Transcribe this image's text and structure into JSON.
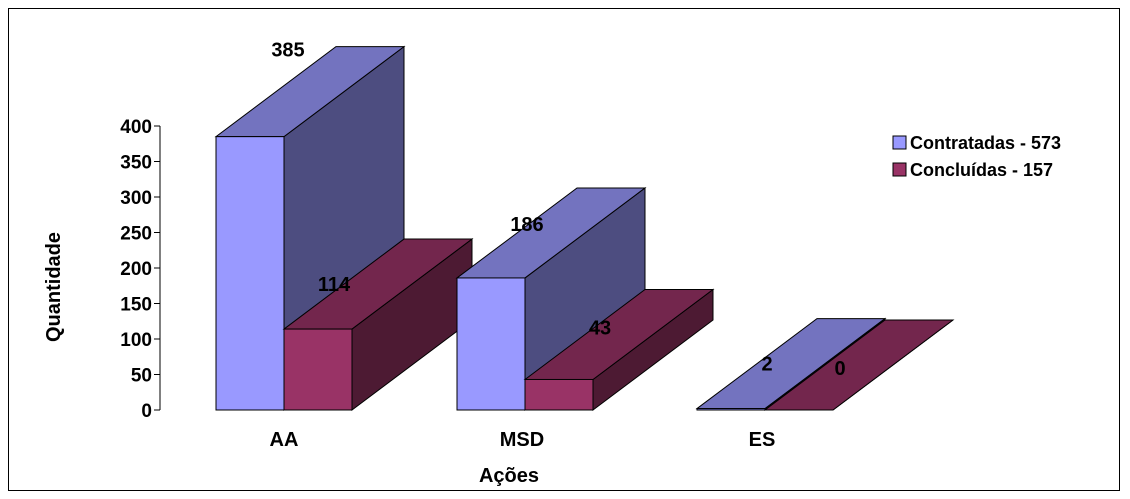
{
  "chart_data": {
    "type": "bar",
    "style": "3d-clustered-column",
    "categories": [
      "AA",
      "MSD",
      "ES"
    ],
    "series": [
      {
        "name": "Contratadas - 573",
        "values": [
          385,
          186,
          2
        ],
        "color": "#9999ff"
      },
      {
        "name": "Concluídas - 157",
        "values": [
          114,
          43,
          0
        ],
        "color": "#993366"
      }
    ],
    "data_labels": [
      [
        "385",
        "186",
        "2"
      ],
      [
        "114",
        "43",
        "0"
      ]
    ],
    "xlabel": "Ações",
    "ylabel": "Quantidade",
    "ylim": [
      0,
      400
    ],
    "yticks": [
      "0",
      "50",
      "100",
      "150",
      "200",
      "250",
      "300",
      "350",
      "400"
    ],
    "grid": false,
    "legend_position": "right"
  }
}
